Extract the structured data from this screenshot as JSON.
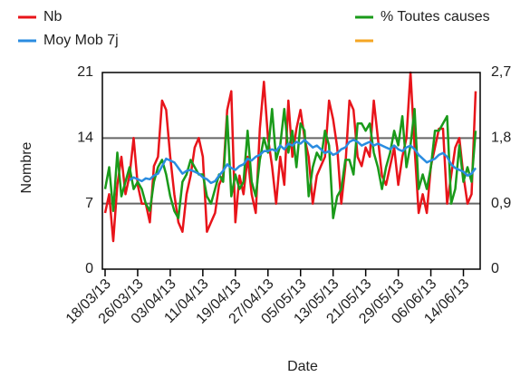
{
  "chart_data": {
    "type": "line",
    "xlabel": "Date",
    "ylabel": "Nombre",
    "categories": [
      "18/03/13",
      null,
      null,
      null,
      null,
      null,
      null,
      null,
      "26/03/13",
      null,
      null,
      null,
      null,
      null,
      null,
      null,
      "03/04/13",
      null,
      null,
      null,
      null,
      null,
      null,
      null,
      "11/04/13",
      null,
      null,
      null,
      null,
      null,
      null,
      null,
      "19/04/13",
      null,
      null,
      null,
      null,
      null,
      null,
      null,
      "27/04/13",
      null,
      null,
      null,
      null,
      null,
      null,
      null,
      "05/05/13",
      null,
      null,
      null,
      null,
      null,
      null,
      null,
      "13/05/13",
      null,
      null,
      null,
      null,
      null,
      null,
      null,
      "21/05/13",
      null,
      null,
      null,
      null,
      null,
      null,
      null,
      "29/05/13",
      null,
      null,
      null,
      null,
      null,
      null,
      null,
      "06/06/13",
      null,
      null,
      null,
      null,
      null,
      null,
      null,
      "14/06/13",
      null,
      null,
      null
    ],
    "series": [
      {
        "name": "Nb",
        "color": "#e8141a",
        "values": [
          6,
          8,
          3,
          9,
          12,
          8,
          10,
          14,
          9,
          7,
          7,
          5,
          11,
          12,
          18,
          17,
          12,
          8,
          5,
          4,
          8,
          10,
          13,
          14,
          12,
          4,
          5,
          6,
          9,
          10,
          17,
          19,
          5,
          10,
          8,
          12,
          8,
          6,
          15,
          20,
          14,
          11,
          7,
          12,
          9,
          18,
          12,
          15,
          17,
          14,
          12,
          7,
          10,
          11,
          12,
          18,
          16,
          13,
          7,
          11,
          18,
          17,
          12,
          11,
          13,
          12,
          18,
          14,
          10,
          9,
          11,
          13,
          9,
          12,
          14,
          21,
          13,
          6,
          8,
          6,
          11,
          13,
          15,
          15,
          7,
          10,
          13,
          14,
          10,
          7,
          8,
          19
        ]
      },
      {
        "name": "% Toutes causes",
        "color": "#1a9a1a",
        "axis": "y2",
        "values": [
          1.1,
          1.4,
          0.8,
          1.6,
          1.0,
          1.2,
          1.4,
          1.1,
          1.2,
          1.1,
          0.9,
          0.8,
          1.2,
          1.4,
          1.5,
          1.3,
          1.0,
          0.8,
          0.7,
          1.2,
          1.3,
          1.5,
          1.4,
          1.3,
          1.3,
          1.0,
          0.9,
          1.1,
          1.3,
          1.2,
          2.1,
          1.0,
          1.3,
          1.1,
          1.2,
          1.9,
          1.2,
          1.0,
          1.5,
          1.8,
          1.6,
          2.2,
          1.5,
          1.7,
          2.2,
          1.6,
          1.9,
          1.4,
          2.0,
          1.9,
          1.0,
          1.4,
          1.6,
          1.5,
          1.9,
          1.7,
          0.7,
          1.0,
          1.1,
          1.5,
          1.5,
          1.3,
          2.0,
          2.0,
          1.9,
          2.0,
          1.6,
          1.4,
          1.1,
          1.4,
          1.6,
          1.9,
          1.7,
          2.1,
          1.4,
          1.7,
          2.2,
          1.1,
          1.3,
          1.1,
          1.4,
          1.9,
          1.9,
          2.0,
          2.1,
          0.9,
          1.1,
          1.7,
          1.2,
          1.4,
          1.2,
          1.9
        ]
      },
      {
        "name": "Moy Mob 7j",
        "color": "#2a8ce0",
        "values": [
          null,
          null,
          null,
          null,
          null,
          null,
          9.5,
          9.8,
          9.6,
          9.4,
          9.7,
          9.6,
          10,
          10.2,
          11,
          11.8,
          11.6,
          11.4,
          10.8,
          10.2,
          10.5,
          10.6,
          10.4,
          10.2,
          9.8,
          9.6,
          9.2,
          9.4,
          10,
          10.5,
          11.2,
          10.8,
          10.6,
          11,
          11.2,
          11.8,
          11.6,
          12,
          12.2,
          12.6,
          12.6,
          12.8,
          12.6,
          13.2,
          12.8,
          13.4,
          13.2,
          13.6,
          13.4,
          13.8,
          13.4,
          13,
          13.2,
          12.8,
          12.4,
          12.6,
          12.2,
          12.4,
          12.8,
          13,
          13.6,
          13.8,
          13.6,
          13.2,
          13.4,
          13.6,
          13.2,
          13.4,
          13.2,
          13,
          12.8,
          13.2,
          12.8,
          12.6,
          13,
          13.2,
          12.8,
          12.2,
          11.8,
          11.4,
          11.6,
          11.8,
          12.2,
          12.4,
          12,
          11.2,
          10.8,
          10.6,
          10.4,
          10,
          10.2,
          10.8
        ]
      },
      {
        "color": "#f5a623"
      }
    ],
    "ylim": [
      0,
      21
    ],
    "yticks": [
      0,
      7,
      14,
      21
    ],
    "y2lim": [
      0,
      2.7
    ],
    "y2ticks": [
      0,
      {
        "value": 0.9,
        "label": "0,9"
      },
      {
        "value": 1.8,
        "label": "1,8"
      },
      {
        "value": 2.7,
        "label": "2,7"
      }
    ],
    "grid": true
  }
}
